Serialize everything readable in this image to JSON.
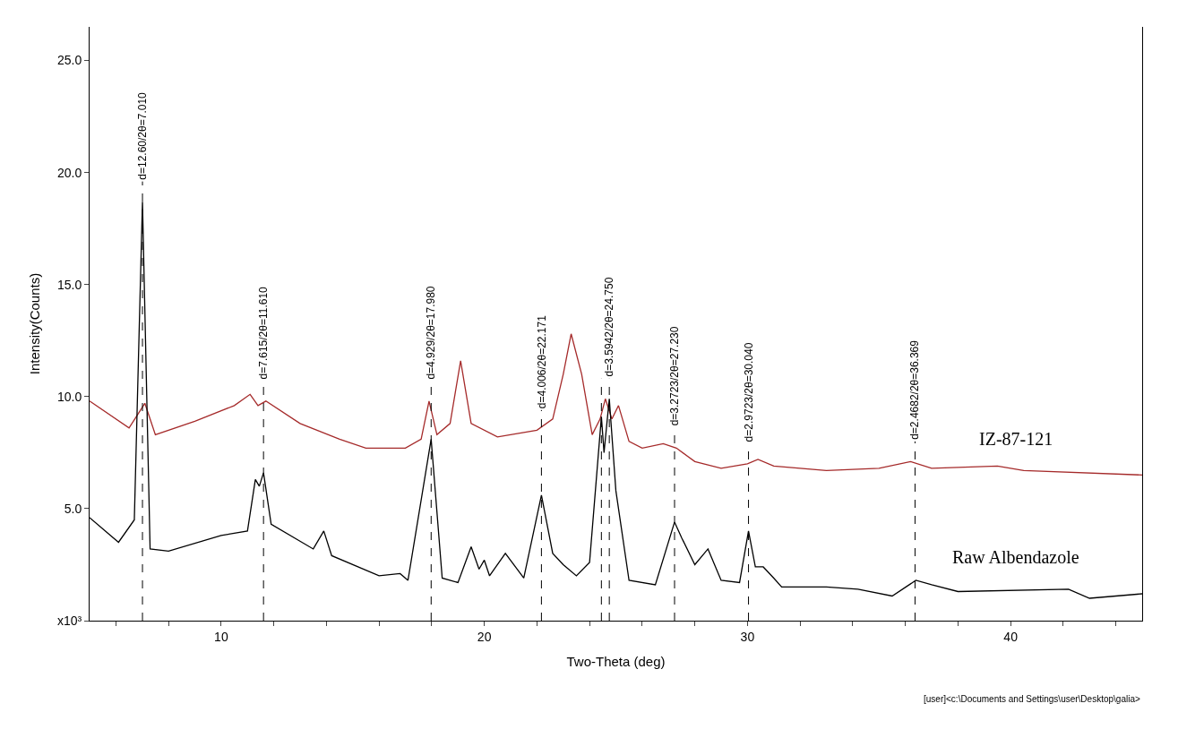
{
  "chart_data": {
    "type": "line",
    "xlabel": "Two-Theta (deg)",
    "ylabel": "Intensity(Counts)",
    "xlim": [
      5,
      45
    ],
    "ylim": [
      0,
      26.5
    ],
    "xticks": [
      {
        "value": 6,
        "label": null
      },
      {
        "value": 8,
        "label": null
      },
      10,
      {
        "value": 12,
        "label": null
      },
      {
        "value": 14,
        "label": null
      },
      {
        "value": 16,
        "label": null
      },
      {
        "value": 18,
        "label": null
      },
      20,
      {
        "value": 22,
        "label": null
      },
      {
        "value": 24,
        "label": null
      },
      {
        "value": 26,
        "label": null
      },
      {
        "value": 28,
        "label": null
      },
      30,
      {
        "value": 32,
        "label": null
      },
      {
        "value": 34,
        "label": null
      },
      {
        "value": 36,
        "label": null
      },
      {
        "value": 38,
        "label": null
      },
      40,
      {
        "value": 42,
        "label": null
      },
      {
        "value": 44,
        "label": null
      }
    ],
    "yticks": [
      {
        "value": 0,
        "label": "x10³"
      },
      {
        "value": 5,
        "label": "5.0"
      },
      {
        "value": 10,
        "label": "10.0"
      },
      {
        "value": 15,
        "label": "15.0"
      },
      {
        "value": 20,
        "label": "20.0"
      },
      {
        "value": 25,
        "label": "25.0"
      }
    ],
    "marker": "none",
    "line_style": "solid",
    "series": [
      {
        "name": "IZ-87-121",
        "color": "#a52a2a",
        "x": [
          5,
          6.5,
          7.1,
          7.5,
          9,
          10.5,
          11.1,
          11.4,
          11.7,
          13,
          14.5,
          15.5,
          17,
          17.6,
          17.9,
          18.2,
          18.7,
          19.1,
          19.5,
          20.5,
          22,
          22.6,
          23.0,
          23.3,
          23.7,
          24.1,
          24.4,
          24.6,
          24.85,
          25.1,
          25.5,
          26,
          26.8,
          27.3,
          28,
          29,
          30,
          30.4,
          31,
          33,
          35,
          36.2,
          37,
          39.5,
          40.5,
          45
        ],
        "values": [
          9.8,
          8.6,
          9.7,
          8.3,
          8.9,
          9.6,
          10.1,
          9.6,
          9.8,
          8.8,
          8.1,
          7.7,
          7.7,
          8.1,
          9.8,
          8.3,
          8.8,
          11.6,
          8.8,
          8.2,
          8.5,
          9.0,
          11.0,
          12.8,
          11.0,
          8.3,
          9.0,
          9.9,
          9.0,
          9.6,
          8.0,
          7.7,
          7.9,
          7.7,
          7.1,
          6.8,
          7.0,
          7.2,
          6.9,
          6.7,
          6.8,
          7.1,
          6.8,
          6.9,
          6.7,
          6.5
        ]
      },
      {
        "name": "Raw Albendazole",
        "color": "#000000",
        "x": [
          5,
          6.1,
          6.7,
          7.01,
          7.3,
          8,
          10,
          11.0,
          11.3,
          11.45,
          11.61,
          11.9,
          13.5,
          13.9,
          14.2,
          16,
          16.8,
          17.1,
          17.98,
          18.4,
          19.0,
          19.5,
          19.8,
          20.0,
          20.2,
          20.8,
          21.5,
          22.171,
          22.6,
          23,
          23.5,
          24.0,
          24.45,
          24.55,
          24.75,
          25.0,
          25.5,
          26.5,
          27.23,
          27.5,
          28.0,
          28.5,
          29.0,
          29.7,
          30.04,
          30.3,
          30.6,
          31,
          31.3,
          33,
          34.2,
          35.5,
          36.4,
          37,
          38,
          42.2,
          43,
          45
        ],
        "values": [
          4.6,
          3.5,
          4.5,
          18.7,
          3.2,
          3.1,
          3.8,
          4.0,
          6.3,
          6.0,
          6.6,
          4.3,
          3.2,
          4.0,
          2.9,
          2.0,
          2.1,
          1.8,
          8.1,
          1.9,
          1.7,
          3.3,
          2.3,
          2.7,
          2.0,
          3.0,
          1.9,
          5.6,
          3.0,
          2.5,
          2.0,
          2.6,
          9.1,
          7.5,
          9.9,
          5.8,
          1.8,
          1.6,
          4.4,
          3.7,
          2.5,
          3.2,
          1.8,
          1.7,
          4.0,
          2.4,
          2.4,
          1.9,
          1.5,
          1.5,
          1.4,
          1.1,
          1.8,
          1.6,
          1.3,
          1.4,
          1.0,
          1.2
        ]
      }
    ],
    "ref_lines": [
      {
        "axis": "x",
        "value": 7.01,
        "label": "d=12.60/2θ=7.010",
        "line_style": "dashed"
      },
      {
        "axis": "x",
        "value": 11.61,
        "label": "d=7.615/2θ=11.610",
        "line_style": "dashed"
      },
      {
        "axis": "x",
        "value": 17.98,
        "label": "d=4.929/2θ=17.980",
        "line_style": "dashed"
      },
      {
        "axis": "x",
        "value": 22.171,
        "label": "d=4.006/2θ=22.171",
        "line_style": "dashed"
      },
      {
        "axis": "x",
        "value": 24.45,
        "label": null,
        "line_style": "dashed"
      },
      {
        "axis": "x",
        "value": 24.75,
        "label": "d=3.5942/2θ=24.750",
        "line_style": "dashed"
      },
      {
        "axis": "x",
        "value": 27.23,
        "label": "d=3.2723/2θ=27.230",
        "line_style": "dashed"
      },
      {
        "axis": "x",
        "value": 30.04,
        "label": "d=2.9723/2θ=30.040",
        "line_style": "dashed"
      },
      {
        "axis": "x",
        "value": 36.369,
        "label": "d=2.4682/2θ=36.369",
        "line_style": "dashed"
      }
    ],
    "annotations": [
      "[user]<c:\\Documents and Settings\\user\\Desktop\\galia>"
    ]
  }
}
